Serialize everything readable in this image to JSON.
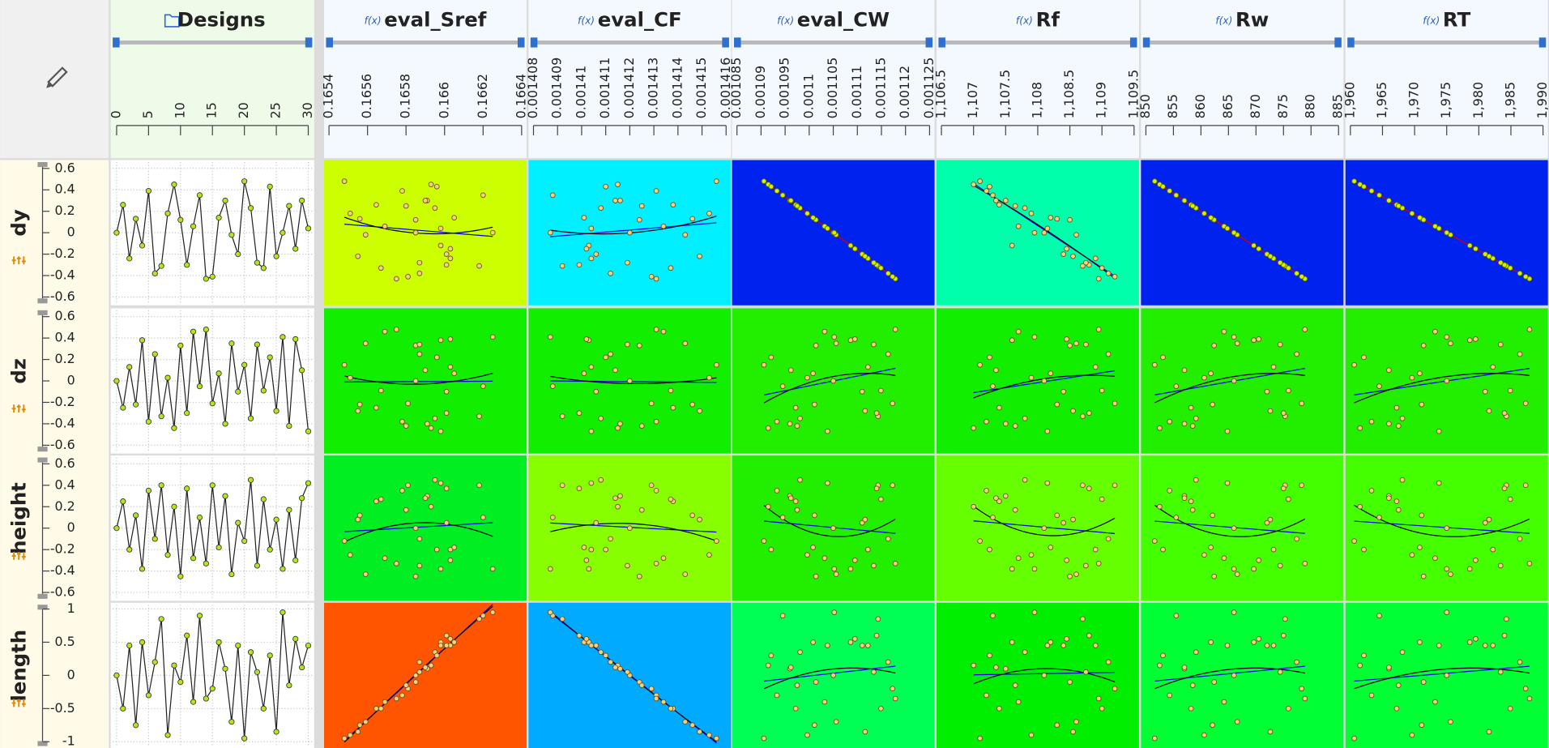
{
  "chart_data": {
    "type": "scatter_matrix",
    "design_axis": {
      "title": "Designs",
      "xlim": [
        0,
        30
      ],
      "xticks": [
        0,
        5,
        10,
        15,
        20,
        25,
        30
      ]
    },
    "x": [
      0,
      1,
      2,
      3,
      4,
      5,
      6,
      7,
      8,
      9,
      10,
      11,
      12,
      13,
      14,
      15,
      16,
      17,
      18,
      19,
      20,
      21,
      22,
      23,
      24,
      25,
      26,
      27,
      28,
      29,
      30
    ],
    "output_prefix": "f(x)",
    "inputs": [
      {
        "name": "dy",
        "ylim": [
          -0.65,
          0.65
        ],
        "yticks": [
          0.6,
          0.4,
          0.2,
          0,
          -0.2,
          -0.4,
          -0.6
        ],
        "values": [
          0,
          0.26,
          -0.24,
          0.13,
          -0.12,
          0.39,
          -0.38,
          -0.31,
          0.18,
          0.45,
          0.12,
          -0.3,
          0.06,
          0.35,
          -0.43,
          -0.41,
          0.14,
          0.3,
          -0.02,
          -0.2,
          0.48,
          0.23,
          -0.28,
          -0.33,
          0.43,
          -0.22,
          0,
          0.25,
          -0.15,
          0.3,
          0.04
        ]
      },
      {
        "name": "dz",
        "ylim": [
          -0.65,
          0.65
        ],
        "yticks": [
          0.6,
          0.4,
          0.2,
          0,
          -0.2,
          -0.4,
          -0.6
        ],
        "values": [
          0,
          -0.25,
          0.13,
          -0.22,
          0.38,
          -0.38,
          0.25,
          -0.33,
          0.03,
          -0.44,
          0.33,
          -0.3,
          0.46,
          -0.05,
          0.48,
          -0.21,
          0.07,
          -0.4,
          0.35,
          -0.1,
          0.15,
          -0.35,
          0.34,
          -0.09,
          0.22,
          -0.28,
          0.41,
          -0.42,
          0.39,
          0.1,
          -0.47
        ]
      },
      {
        "name": "height",
        "ylim": [
          -0.65,
          0.65
        ],
        "yticks": [
          0.6,
          0.4,
          0.2,
          0,
          -0.2,
          -0.4,
          -0.6
        ],
        "values": [
          0,
          0.25,
          -0.2,
          0.12,
          -0.38,
          0.35,
          -0.1,
          0.4,
          -0.25,
          0.2,
          -0.45,
          0.37,
          -0.28,
          0.1,
          -0.33,
          0.4,
          -0.18,
          0.3,
          -0.43,
          0.05,
          -0.12,
          0.45,
          -0.35,
          0.27,
          -0.2,
          0.08,
          -0.38,
          0.17,
          -0.3,
          0.28,
          0.42
        ]
      },
      {
        "name": "length",
        "ylim": [
          -1.05,
          1.05
        ],
        "yticks": [
          1,
          0.5,
          0,
          -0.5,
          -1
        ],
        "values": [
          0,
          -0.5,
          0.45,
          -0.75,
          0.5,
          -0.3,
          0.2,
          0.85,
          -0.9,
          0.15,
          -0.1,
          0.6,
          -0.4,
          0.9,
          -0.35,
          -0.2,
          0.5,
          0.1,
          -0.7,
          0.45,
          -0.95,
          0.35,
          0.05,
          -0.5,
          0.3,
          -0.85,
          0.95,
          -0.15,
          0.55,
          0.12,
          0.45
        ]
      }
    ],
    "outputs": [
      {
        "name": "eval_Sref",
        "xlim": [
          0.1654,
          0.1664
        ],
        "xticks": [
          0.1654,
          0.1656,
          0.1658,
          0.166,
          0.1662,
          0.1664
        ],
        "values": [
          0.16585,
          0.165645,
          0.16603,
          0.16556,
          0.16598,
          0.16578,
          0.16587,
          0.16618,
          0.16551,
          0.16593,
          0.16585,
          0.16601,
          0.16569,
          0.1662,
          0.16575,
          0.16581,
          0.16605,
          0.16591,
          0.16559,
          0.16601,
          0.16548,
          0.16595,
          0.16587,
          0.16567,
          0.16596,
          0.16555,
          0.16625,
          0.1658,
          0.16603,
          0.1659,
          0.16598
        ]
      },
      {
        "name": "eval_CF",
        "xlim": [
          0.001408,
          0.001416
        ],
        "xticks": [
          0.001408,
          0.001409,
          0.00141,
          0.001411,
          0.001412,
          0.001413,
          0.001414,
          0.001415,
          0.001416
        ],
        "values": [
          0.001412,
          0.0014138,
          0.0014104,
          0.0014146,
          0.0014103,
          0.0014131,
          0.0014112,
          0.0014092,
          0.0014153,
          0.0014115,
          0.0014124,
          0.0014099,
          0.0014134,
          0.0014088,
          0.0014131,
          0.0014129,
          0.0014101,
          0.0014116,
          0.0014143,
          0.0014106,
          0.0014156,
          0.0014108,
          0.0014119,
          0.0014137,
          0.001411,
          0.0014149,
          0.0014087,
          0.0014125,
          0.0014102,
          0.0014114,
          0.0014104
        ]
      },
      {
        "name": "eval_CW",
        "xlim": [
          0.001085,
          0.001125
        ],
        "xticks": [
          0.001085,
          0.00109,
          0.001095,
          0.0011,
          0.001105,
          0.00111,
          0.001115,
          0.00112,
          0.001125
        ],
        "values": [
          0.001105,
          0.0010972,
          0.0011122,
          0.0011011,
          0.0011086,
          0.0010933,
          0.0011164,
          0.0011143,
          0.0010996,
          0.0010915,
          0.0011014,
          0.001114,
          0.0011032,
          0.0010945,
          0.0011179,
          0.0011173,
          0.0011008,
          0.001096,
          0.0011056,
          0.001111,
          0.0010906,
          0.0010981,
          0.0011134,
          0.0011149,
          0.0010921,
          0.0011116,
          0.0011052,
          0.0010975,
          0.0011095,
          0.0010962,
          0.0011038
        ]
      },
      {
        "name": "Rf",
        "xlim": [
          1106.5,
          1109.5
        ],
        "xticks": [
          {
            "value": 1106.5,
            "label": "1,106.5"
          },
          {
            "value": 1107,
            "label": "1,107"
          },
          {
            "value": 1107.5,
            "label": "1,107.5"
          },
          {
            "value": 1108,
            "label": "1,108"
          },
          {
            "value": 1108.5,
            "label": "1,108.5"
          },
          {
            "value": 1109,
            "label": "1,109"
          },
          {
            "value": 1109.5,
            "label": "1,109.5"
          }
        ],
        "values": [
          1108.1,
          1107.4,
          1108.9,
          1108.3,
          1107.6,
          1107.2,
          1109.1,
          1108.7,
          1107.9,
          1107,
          1108.5,
          1108.8,
          1107.7,
          1107.3,
          1108.95,
          1109.2,
          1108.2,
          1107.5,
          1108.6,
          1108.4,
          1107.1,
          1107.8,
          1108.75,
          1109,
          1107.25,
          1108.55,
          1107.95,
          1107.65,
          1108.45,
          1107.35,
          1108.15
        ]
      },
      {
        "name": "Rw",
        "xlim": [
          850,
          885
        ],
        "xticks": [
          850,
          855,
          860,
          865,
          870,
          875,
          880,
          885
        ],
        "values": [
          866,
          858.2,
          873.2,
          862.1,
          869.6,
          854.3,
          877.4,
          875.3,
          860.6,
          852.5,
          862.4,
          875,
          864.2,
          855.5,
          878.9,
          878.3,
          861.8,
          857,
          866.6,
          872,
          851.6,
          859.1,
          874.4,
          875.9,
          853.1,
          872.6,
          866,
          858.5,
          870.5,
          857,
          864.8
        ]
      },
      {
        "name": "RT",
        "xlim": [
          1960,
          1990
        ],
        "xticks": [
          {
            "value": 1960,
            "label": "1,960"
          },
          {
            "value": 1965,
            "label": "1,965"
          },
          {
            "value": 1970,
            "label": "1,970"
          },
          {
            "value": 1975,
            "label": "1,975"
          },
          {
            "value": 1980,
            "label": "1,980"
          },
          {
            "value": 1985,
            "label": "1,985"
          },
          {
            "value": 1990,
            "label": "1,990"
          }
        ],
        "values": [
          1975,
          1967.2,
          1982.2,
          1971.1,
          1978.6,
          1963.3,
          1986.4,
          1984.3,
          1969.6,
          1961.5,
          1971.4,
          1984,
          1973.2,
          1964.5,
          1987.9,
          1987.3,
          1970.8,
          1966,
          1975.6,
          1981,
          1960.6,
          1968.1,
          1983.4,
          1984.9,
          1962.1,
          1981.6,
          1975,
          1967.5,
          1979.5,
          1966,
          1973.8
        ]
      }
    ],
    "panel_colors": [
      [
        "#ccff00",
        "#00f0ff",
        "#0022ee",
        "#00ffaa",
        "#0022ee",
        "#0022ee"
      ],
      [
        "#11ee00",
        "#11ee00",
        "#22ee00",
        "#11ee00",
        "#22ee00",
        "#22ee00"
      ],
      [
        "#00ee22",
        "#88ff00",
        "#22ee00",
        "#66ff00",
        "#44ff00",
        "#44ff00"
      ],
      [
        "#ff5500",
        "#00aaff",
        "#00ff55",
        "#00ee00",
        "#00ff33",
        "#00ff33"
      ]
    ],
    "designs_point_color": "#b5e61d",
    "point_color": "#f2d37a",
    "point_color_on_dark": "#d8f000",
    "linear_fit_color": "#0000ee",
    "quadratic_fit_color": "#000000",
    "fit_color_on_dark": "#cc0000",
    "grid": true
  }
}
